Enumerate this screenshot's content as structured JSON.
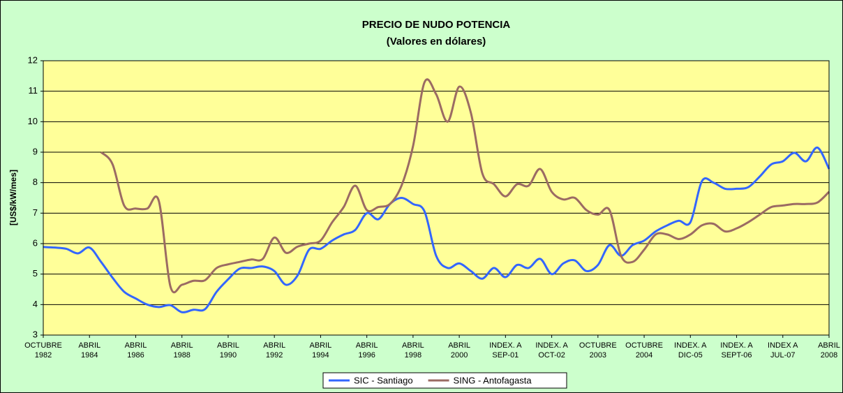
{
  "chart_data": {
    "type": "line",
    "title": "PRECIO DE NUDO POTENCIA",
    "subtitle": "(Valores en dólares)",
    "y_label": "[US$/kW/mes]",
    "categories": [
      [
        "OCTUBRE",
        "1982"
      ],
      null,
      null,
      null,
      [
        "ABRIL",
        "1984"
      ],
      null,
      null,
      null,
      [
        "ABRIL",
        "1986"
      ],
      null,
      null,
      null,
      [
        "ABRIL",
        "1988"
      ],
      null,
      null,
      null,
      [
        "ABRIL",
        "1990"
      ],
      null,
      null,
      null,
      [
        "ABRIL",
        "1992"
      ],
      null,
      null,
      null,
      [
        "ABRIL",
        "1994"
      ],
      null,
      null,
      null,
      [
        "ABRIL",
        "1996"
      ],
      null,
      null,
      null,
      [
        "ABRIL",
        "1998"
      ],
      null,
      null,
      null,
      [
        "ABRIL",
        "2000"
      ],
      null,
      null,
      null,
      [
        "INDEX. A",
        "SEP-01"
      ],
      null,
      null,
      null,
      [
        "INDEX. A",
        "OCT-02"
      ],
      null,
      null,
      null,
      [
        "OCTUBRE",
        "2003"
      ],
      null,
      null,
      null,
      [
        "OCTUBRE",
        "2004"
      ],
      null,
      null,
      null,
      [
        "INDEX. A",
        "DIC-05"
      ],
      null,
      null,
      null,
      [
        "INDEX. A",
        "SEPT-06"
      ],
      null,
      null,
      null,
      [
        "INDEX A",
        "JUL-07"
      ],
      null,
      null,
      null,
      [
        "ABRIL",
        "2008"
      ]
    ],
    "series": [
      {
        "name": "SIC - Santiago",
        "color": "#3366ff",
        "values": [
          5.89,
          5.87,
          5.83,
          5.68,
          5.87,
          5.4,
          4.88,
          4.42,
          4.2,
          4.0,
          3.92,
          3.98,
          3.75,
          3.83,
          3.85,
          4.42,
          4.83,
          5.18,
          5.2,
          5.25,
          5.1,
          4.65,
          4.95,
          5.8,
          5.83,
          6.1,
          6.3,
          6.45,
          7.0,
          6.8,
          7.3,
          7.5,
          7.3,
          7.05,
          5.6,
          5.2,
          5.35,
          5.1,
          4.85,
          5.2,
          4.9,
          5.3,
          5.2,
          5.5,
          5.0,
          5.35,
          5.45,
          5.1,
          5.3,
          5.95,
          5.6,
          5.95,
          6.1,
          6.4,
          6.6,
          6.75,
          6.7,
          8.05,
          8.0,
          7.8,
          7.8,
          7.85,
          8.2,
          8.6,
          8.7,
          8.98,
          8.7,
          9.15,
          8.45
        ]
      },
      {
        "name": "SING - Antofagasta",
        "color": "#9b6b63",
        "values": [
          null,
          null,
          null,
          null,
          null,
          9.0,
          8.6,
          7.25,
          7.15,
          7.15,
          7.4,
          4.6,
          4.65,
          4.78,
          4.8,
          5.2,
          5.32,
          5.4,
          5.48,
          5.5,
          6.2,
          5.7,
          5.9,
          6.0,
          6.1,
          6.7,
          7.2,
          7.9,
          7.1,
          7.2,
          7.3,
          7.9,
          9.2,
          11.3,
          10.9,
          10.0,
          11.15,
          10.3,
          8.3,
          7.95,
          7.55,
          7.95,
          7.9,
          8.45,
          7.7,
          7.45,
          7.5,
          7.1,
          6.95,
          7.1,
          5.6,
          5.4,
          5.8,
          6.3,
          6.3,
          6.15,
          6.3,
          6.6,
          6.65,
          6.4,
          6.5,
          6.7,
          6.95,
          7.2,
          7.25,
          7.3,
          7.3,
          7.35,
          7.7
        ]
      }
    ],
    "ylim": [
      3,
      12
    ],
    "yticks": [
      3,
      4,
      5,
      6,
      7,
      8,
      9,
      10,
      11,
      12
    ],
    "grid": true,
    "legend": "bottom"
  }
}
